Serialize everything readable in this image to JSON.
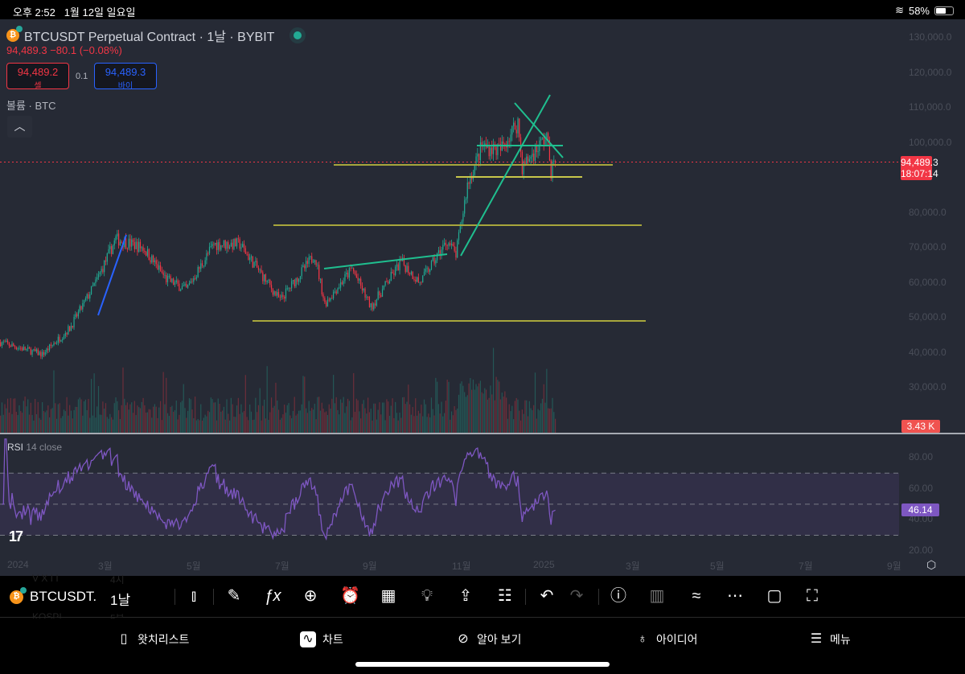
{
  "status_bar": {
    "time": "오후 2:52",
    "date": "1월 12일 일요일",
    "battery": "58%",
    "battery_level": 0.58
  },
  "header": {
    "title": "BTCUSDT Perpetual Contract · 1날 · BYBIT",
    "price_change": "94,489.3  −80.1 (−0.08%)",
    "sell_price": "94,489.2",
    "sell_label": "셀",
    "spread": "0.1",
    "buy_price": "94,489.3",
    "buy_label": "바이",
    "volume_label": "볼륨 · BTC"
  },
  "price_axis": [
    "130,000.0",
    "120,000.0",
    "110,000.0",
    "100,000.0",
    "80,000.0",
    "70,000.0",
    "60,000.0",
    "50,000.0",
    "40,000.0",
    "30,000.0"
  ],
  "last_price_tag": "94,489.3",
  "countdown": "18:07:14",
  "volume_tag": "3.43 K",
  "rsi": {
    "name": "RSI",
    "params": "14 close",
    "axis": [
      "80.00",
      "60.00",
      "40.00",
      "20.00"
    ],
    "value_tag": "46.14",
    "value": 46.14
  },
  "time_axis": [
    "2024",
    "3월",
    "5월",
    "7월",
    "9월",
    "11월",
    "2025",
    "3월",
    "5월",
    "7월",
    "9월"
  ],
  "colors": {
    "up": "#22ab94",
    "down": "#f23645",
    "bg": "#262a35",
    "rsi": "#7e57c2",
    "trend_green": "#1fbf8f",
    "trend_yellow": "#a7a63c",
    "trend_blue": "#2962ff"
  },
  "chart_data": {
    "type": "candlestick",
    "ylim": [
      30000,
      130000
    ],
    "price_anchors": [
      [
        "2023-12-24",
        43000
      ],
      [
        "2024-01-22",
        39500
      ],
      [
        "2024-02-10",
        47000
      ],
      [
        "2024-02-28",
        60000
      ],
      [
        "2024-03-13",
        72500
      ],
      [
        "2024-04-01",
        70000
      ],
      [
        "2024-04-17",
        61000
      ],
      [
        "2024-05-01",
        58000
      ],
      [
        "2024-05-20",
        71000
      ],
      [
        "2024-06-07",
        71000
      ],
      [
        "2024-07-05",
        55000
      ],
      [
        "2024-07-29",
        68000
      ],
      [
        "2024-08-05",
        54000
      ],
      [
        "2024-08-24",
        64000
      ],
      [
        "2024-09-06",
        53000
      ],
      [
        "2024-09-27",
        66000
      ],
      [
        "2024-10-10",
        60000
      ],
      [
        "2024-10-29",
        72000
      ],
      [
        "2024-11-04",
        68000
      ],
      [
        "2024-11-12",
        88000
      ],
      [
        "2024-11-22",
        99000
      ],
      [
        "2024-12-05",
        98000
      ],
      [
        "2024-12-17",
        106000
      ],
      [
        "2024-12-20",
        93000
      ],
      [
        "2025-01-06",
        102000
      ],
      [
        "2025-01-09",
        92000
      ],
      [
        "2025-01-12",
        94489.3
      ]
    ]
  },
  "toolbar": {
    "symbol": "BTCUSDT.",
    "interval": "1날",
    "ghost": [
      "V X I I",
      "4시",
      "KOSPI",
      "5분"
    ]
  },
  "nav": [
    {
      "label": "왓치리스트",
      "icon": "watchlist-icon"
    },
    {
      "label": "차트",
      "icon": "chart-icon"
    },
    {
      "label": "알아 보기",
      "icon": "compass-icon"
    },
    {
      "label": "아이디어",
      "icon": "lightbulb-icon"
    },
    {
      "label": "메뉴",
      "icon": "menu-icon"
    }
  ]
}
